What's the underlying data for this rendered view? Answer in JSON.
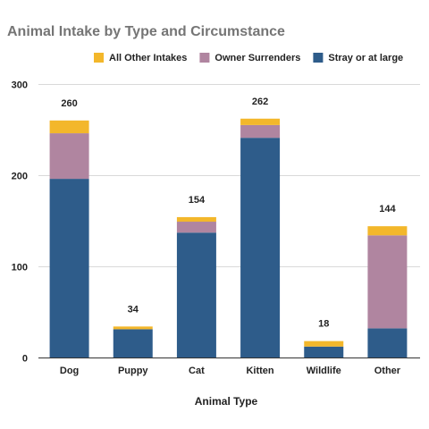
{
  "chart_data": {
    "type": "bar",
    "stacked": true,
    "title": "Animal Intake by Type and Circumstance",
    "xlabel": "Animal Type",
    "ylabel": "",
    "ylim": [
      0,
      300
    ],
    "yticks": [
      0,
      100,
      200,
      300
    ],
    "grid": true,
    "legend_position": "top",
    "categories": [
      "Dog",
      "Puppy",
      "Cat",
      "Kitten",
      "Wildlife",
      "Other"
    ],
    "series": [
      {
        "name": "Stray or at large",
        "color": "#2e5c8a",
        "values": [
          196,
          31,
          137,
          241,
          12,
          32
        ]
      },
      {
        "name": "Owner Surrenders",
        "color": "#b085a0",
        "values": [
          50,
          0,
          12,
          14,
          0,
          102
        ]
      },
      {
        "name": "All Other Intakes",
        "color": "#f3b72b",
        "values": [
          14,
          3,
          5,
          7,
          6,
          10
        ]
      }
    ],
    "legend_order": [
      2,
      1,
      0
    ],
    "totals": [
      260,
      34,
      154,
      262,
      18,
      144
    ]
  }
}
